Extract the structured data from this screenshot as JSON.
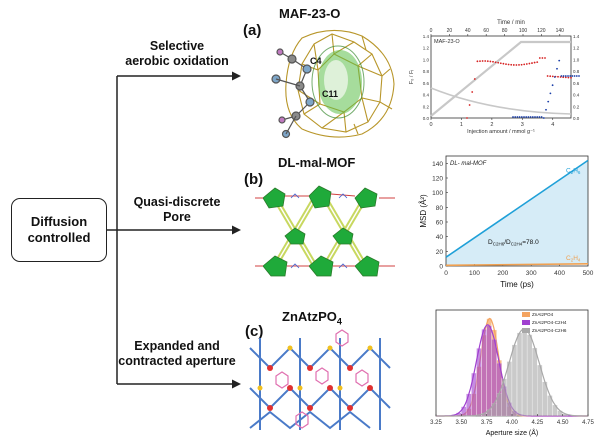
{
  "root": {
    "line1": "Diffusion",
    "line2": "controlled"
  },
  "branches": [
    {
      "line1": "Selective",
      "line2": "aerobic oxidation"
    },
    {
      "line1": "Quasi-discrete",
      "line2": "Pore"
    },
    {
      "line1": "Expanded and",
      "line2": "contracted aperture"
    }
  ],
  "panels": [
    {
      "label": "(a)",
      "material": "MAF-23-O",
      "atoms": [
        "C4",
        "C11"
      ]
    },
    {
      "label": "(b)",
      "material": "DL-mal-MOF"
    },
    {
      "label": "(c)",
      "material_main": "ZnAtzPO",
      "material_sub": "4"
    }
  ],
  "chart_data": [
    {
      "type": "line",
      "inset_label": "MAF-23-O",
      "top_axis_label": "Time / min",
      "top_ticks": [
        "0",
        "20",
        "40",
        "60",
        "80",
        "100",
        "120",
        "140"
      ],
      "xlabel": "Injection amount / mmol g⁻¹",
      "x_ticks": [
        "0",
        "1",
        "2",
        "3",
        "4"
      ],
      "ylabel": "F₀ / Fᵢ",
      "y_ticks_left": [
        "0.0",
        "0.2",
        "0.4",
        "0.6",
        "0.8",
        "1.0",
        "1.2",
        "1.4"
      ],
      "y_ticks_right": [
        "0.0",
        "0.2",
        "0.4",
        "0.6",
        "0.8",
        "1.0",
        "1.2",
        "1.4"
      ],
      "colors": {
        "red": "#d62020",
        "blue": "#1a3ea8",
        "gray": "#c8c8c8"
      }
    },
    {
      "type": "line",
      "inset_label": "DL- mal-MOF",
      "xlabel": "Time (ps)",
      "ylabel": "MSD (Å²)",
      "x_ticks": [
        "0",
        "100",
        "200",
        "300",
        "400",
        "500"
      ],
      "y_ticks": [
        "0",
        "20",
        "40",
        "60",
        "80",
        "100",
        "120",
        "140"
      ],
      "xlim": [
        0,
        500
      ],
      "ylim": [
        0,
        150
      ],
      "annotation": "D₀₂₄₆/D₀₂₄₄=78.0",
      "annotation_main": "D",
      "annotation_sub1": "C2H6",
      "annotation_mid": "/D",
      "annotation_sub2": "C2H4",
      "annotation_tail": "=78.0",
      "series": [
        {
          "name": "C2H6",
          "name_main": "C",
          "name_sub1": "2",
          "name_mid": "H",
          "name_sub2": "6",
          "color": "#1fa0d8",
          "x": [
            0,
            500
          ],
          "y": [
            12,
            144
          ]
        },
        {
          "name": "C2H4",
          "name_main": "C",
          "name_sub1": "2",
          "name_mid": "H",
          "name_sub2": "4",
          "color": "#f0a050",
          "x": [
            0,
            500
          ],
          "y": [
            1,
            3
          ]
        }
      ]
    },
    {
      "type": "bar",
      "xlabel": "Aperture size (Å)",
      "x_ticks": [
        "3.25",
        "3.50",
        "3.75",
        "4.00",
        "4.25",
        "4.50",
        "4.75"
      ],
      "xlim": [
        3.25,
        4.75
      ],
      "legend": [
        {
          "name": "ZnAtzPO4",
          "color": "#f4a460"
        },
        {
          "name": "ZnAtzPO4-C2H4",
          "color": "#a040d0"
        },
        {
          "name": "ZnAtzPO4-C2H6",
          "color": "#a8a8a8"
        }
      ],
      "series": [
        {
          "name": "ZnAtzPO4",
          "color": "#f4a460",
          "mean": 3.78,
          "sd": 0.09,
          "peak": 0.92
        },
        {
          "name": "ZnAtzPO4-C2H4",
          "color": "#a040d0",
          "mean": 3.76,
          "sd": 0.11,
          "peak": 0.86
        },
        {
          "name": "ZnAtzPO4-C2H6",
          "color": "#a8a8a8",
          "mean": 4.12,
          "sd": 0.15,
          "peak": 0.82
        }
      ]
    }
  ]
}
